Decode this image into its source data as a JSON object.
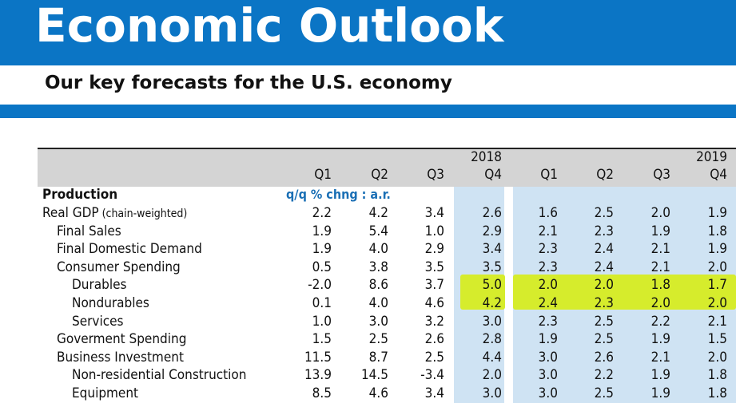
{
  "header": {
    "title": "Economic Outlook",
    "subtitle": "Our key forecasts for the U.S. economy"
  },
  "table": {
    "years": [
      "2018",
      "2019"
    ],
    "quarters": [
      "Q1",
      "Q2",
      "Q3",
      "Q4",
      "Q1",
      "Q2",
      "Q3",
      "Q4"
    ],
    "section_label": "Production",
    "unit_label": "q/q % chng : a.r.",
    "rows": [
      {
        "label": "Real GDP",
        "note": "(chain-weighted)",
        "values": [
          "2.2",
          "4.2",
          "3.4",
          "2.6",
          "1.6",
          "2.5",
          "2.0",
          "1.9"
        ]
      },
      {
        "label": "Final Sales",
        "values": [
          "1.9",
          "5.4",
          "1.0",
          "2.9",
          "2.1",
          "2.3",
          "1.9",
          "1.8"
        ]
      },
      {
        "label": "Final Domestic Demand",
        "values": [
          "1.9",
          "4.0",
          "2.9",
          "3.4",
          "2.3",
          "2.4",
          "2.1",
          "1.9"
        ]
      },
      {
        "label": "Consumer Spending",
        "values": [
          "0.5",
          "3.8",
          "3.5",
          "3.5",
          "2.3",
          "2.4",
          "2.1",
          "2.0"
        ]
      },
      {
        "label": "Durables",
        "values": [
          "-2.0",
          "8.6",
          "3.7",
          "5.0",
          "2.0",
          "2.0",
          "1.8",
          "1.7"
        ]
      },
      {
        "label": "Nondurables",
        "values": [
          "0.1",
          "4.0",
          "4.6",
          "4.2",
          "2.4",
          "2.3",
          "2.0",
          "2.0"
        ]
      },
      {
        "label": "Services",
        "values": [
          "1.0",
          "3.0",
          "3.2",
          "3.0",
          "2.3",
          "2.5",
          "2.2",
          "2.1"
        ]
      },
      {
        "label": "Goverment Spending",
        "values": [
          "1.5",
          "2.5",
          "2.6",
          "2.8",
          "1.9",
          "2.5",
          "1.9",
          "1.5"
        ]
      },
      {
        "label": "Business Investment",
        "values": [
          "11.5",
          "8.7",
          "2.5",
          "4.4",
          "3.0",
          "2.6",
          "2.1",
          "2.0"
        ]
      },
      {
        "label": "Non-residential Construction",
        "values": [
          "13.9",
          "14.5",
          "-3.4",
          "2.0",
          "3.0",
          "2.2",
          "1.9",
          "1.8"
        ]
      },
      {
        "label": "Equipment",
        "values": [
          "8.5",
          "4.6",
          "3.4",
          "3.0",
          "3.0",
          "2.5",
          "1.9",
          "1.8"
        ]
      }
    ],
    "highlighted_rows": [
      "Durables",
      "Nondurables"
    ],
    "colors": {
      "brand_blue": "#0b75c5",
      "header_gray": "#d4d4d4",
      "forecast_shade": "#cfe3f3",
      "highlight": "#d6ec2c"
    }
  }
}
